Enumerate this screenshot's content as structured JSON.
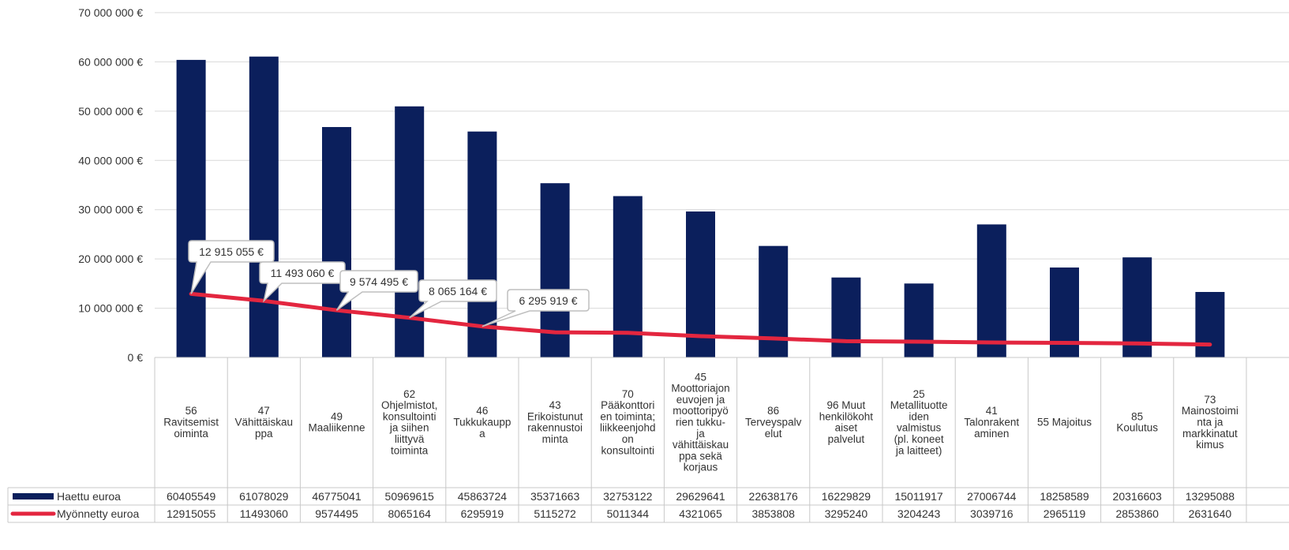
{
  "colors": {
    "bar": "#0b1f5c",
    "line": "#e3263f",
    "grid": "#d9d9d9",
    "text": "#333333",
    "callout_border": "#bfbfbf"
  },
  "chart_data": {
    "type": "bar",
    "title": "",
    "xlabel": "",
    "ylabel": "",
    "ylim": [
      0,
      70000000
    ],
    "y_ticks": [
      0,
      10000000,
      20000000,
      30000000,
      40000000,
      50000000,
      60000000,
      70000000
    ],
    "y_tick_labels": [
      "0 €",
      "10 000 000 €",
      "20 000 000 €",
      "30 000 000 €",
      "40 000 000 €",
      "50 000 000 €",
      "60 000 000 €",
      "70 000 000 €"
    ],
    "grid": true,
    "legend_position": "data-table-left",
    "categories": [
      [
        "56",
        "Ravitsemist",
        "oiminta"
      ],
      [
        "47",
        "Vähittäiskau",
        "ppa"
      ],
      [
        "49",
        "Maaliikenne"
      ],
      [
        "62",
        "Ohjelmistot,",
        "konsultointi",
        "ja siihen",
        "liittyvä",
        "toiminta"
      ],
      [
        "46",
        "Tukkukaupp",
        "a"
      ],
      [
        "43",
        "Erikoistunut",
        "rakennustoi",
        "minta"
      ],
      [
        "70",
        "Pääkonttori",
        "en toiminta;",
        "liikkeenjohd",
        "on",
        "konsultointi"
      ],
      [
        "45",
        "Moottoriajon",
        "euvojen ja",
        "moottoripyö",
        "rien tukku-",
        "ja",
        "vähittäiskau",
        "ppa sekä",
        "korjaus"
      ],
      [
        "86",
        "Terveyspalv",
        "elut"
      ],
      [
        "96  Muut",
        "henkilökoht",
        "aiset",
        "palvelut"
      ],
      [
        "25",
        "Metallituotte",
        "iden",
        "valmistus",
        "(pl. koneet",
        "ja laitteet)"
      ],
      [
        "41",
        "Talonrakent",
        "aminen"
      ],
      [
        "55  Majoitus"
      ],
      [
        "85",
        "Koulutus"
      ],
      [
        "73",
        "Mainostoimi",
        "nta ja",
        "markkinatut",
        "kimus"
      ]
    ],
    "series": [
      {
        "name": "Haettu euroa",
        "type": "bar",
        "color": "#0b1f5c",
        "values": [
          60405549,
          61078029,
          46775041,
          50969615,
          45863724,
          35371663,
          32753122,
          29629641,
          22638176,
          16229829,
          15011917,
          27006744,
          18258589,
          20316603,
          13295088
        ],
        "value_labels": [
          "60405549",
          "61078029",
          "46775041",
          "50969615",
          "45863724",
          "35371663",
          "32753122",
          "29629641",
          "22638176",
          "16229829",
          "15011917",
          "27006744",
          "18258589",
          "20316603",
          "13295088"
        ]
      },
      {
        "name": "Myönnetty euroa",
        "type": "line",
        "color": "#e3263f",
        "values": [
          12915055,
          11493060,
          9574495,
          8065164,
          6295919,
          5115272,
          5011344,
          4321065,
          3853808,
          3295240,
          3204243,
          3039716,
          2965119,
          2853860,
          2631640
        ],
        "value_labels": [
          "12915055",
          "11493060",
          "9574495",
          "8065164",
          "6295919",
          "5115272",
          "5011344",
          "4321065",
          "3853808",
          "3295240",
          "3204243",
          "3039716",
          "2965119",
          "2853860",
          "2631640"
        ]
      }
    ],
    "callouts": [
      {
        "index": 0,
        "text": "12 915 055 €"
      },
      {
        "index": 1,
        "text": "11 493 060 €"
      },
      {
        "index": 2,
        "text": "9 574 495 €"
      },
      {
        "index": 3,
        "text": "8 065 164 €"
      },
      {
        "index": 4,
        "text": "6 295 919 €"
      }
    ]
  }
}
